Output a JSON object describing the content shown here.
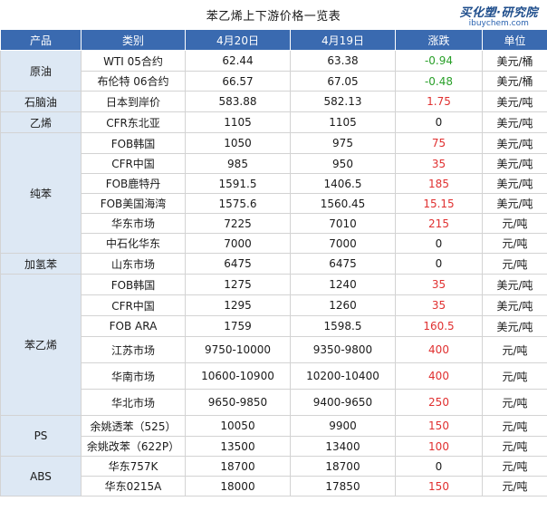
{
  "title": "苯乙烯上下游价格一览表",
  "logo": {
    "main": "买化塑·研究院",
    "sub": "ibuychem.com"
  },
  "headers": [
    "产品",
    "类别",
    "4月20日",
    "4月19日",
    "涨跌",
    "单位"
  ],
  "colors": {
    "header_bg": "#3a6ab0",
    "group_bg": "#dde8f4",
    "up": "#e03030",
    "down": "#2aa02a"
  },
  "groups": [
    {
      "product": "原油",
      "rows": [
        {
          "category": "WTI 05合约",
          "apr20": "62.44",
          "apr19": "63.38",
          "change": "-0.94",
          "dir": "neg",
          "unit": "美元/桶"
        },
        {
          "category": "布伦特 06合约",
          "apr20": "66.57",
          "apr19": "67.05",
          "change": "-0.48",
          "dir": "neg",
          "unit": "美元/桶"
        }
      ]
    },
    {
      "product": "石脑油",
      "rows": [
        {
          "category": "日本到岸价",
          "apr20": "583.88",
          "apr19": "582.13",
          "change": "1.75",
          "dir": "pos",
          "unit": "美元/吨"
        }
      ]
    },
    {
      "product": "乙烯",
      "rows": [
        {
          "category": "CFR东北亚",
          "apr20": "1105",
          "apr19": "1105",
          "change": "0",
          "dir": "zero",
          "unit": "美元/吨"
        }
      ]
    },
    {
      "product": "纯苯",
      "rows": [
        {
          "category": "FOB韩国",
          "apr20": "1050",
          "apr19": "975",
          "change": "75",
          "dir": "pos",
          "unit": "美元/吨"
        },
        {
          "category": "CFR中国",
          "apr20": "985",
          "apr19": "950",
          "change": "35",
          "dir": "pos",
          "unit": "美元/吨"
        },
        {
          "category": "FOB鹿特丹",
          "apr20": "1591.5",
          "apr19": "1406.5",
          "change": "185",
          "dir": "pos",
          "unit": "美元/吨"
        },
        {
          "category": "FOB美国海湾",
          "apr20": "1575.6",
          "apr19": "1560.45",
          "change": "15.15",
          "dir": "pos",
          "unit": "美元/吨"
        },
        {
          "category": "华东市场",
          "apr20": "7225",
          "apr19": "7010",
          "change": "215",
          "dir": "pos",
          "unit": "元/吨"
        },
        {
          "category": "中石化华东",
          "apr20": "7000",
          "apr19": "7000",
          "change": "0",
          "dir": "zero",
          "unit": "元/吨"
        }
      ]
    },
    {
      "product": "加氢苯",
      "rows": [
        {
          "category": "山东市场",
          "apr20": "6475",
          "apr19": "6475",
          "change": "0",
          "dir": "zero",
          "unit": "元/吨"
        }
      ]
    },
    {
      "product": "苯乙烯",
      "rows": [
        {
          "category": "FOB韩国",
          "apr20": "1275",
          "apr19": "1240",
          "change": "35",
          "dir": "pos",
          "unit": "美元/吨"
        },
        {
          "category": "CFR中国",
          "apr20": "1295",
          "apr19": "1260",
          "change": "35",
          "dir": "pos",
          "unit": "美元/吨"
        },
        {
          "category": "FOB ARA",
          "apr20": "1759",
          "apr19": "1598.5",
          "change": "160.5",
          "dir": "pos",
          "unit": "美元/吨"
        },
        {
          "category": "江苏市场",
          "apr20": "9750-10000",
          "apr19": "9350-9800",
          "change": "400",
          "dir": "pos",
          "unit": "元/吨"
        },
        {
          "category": "华南市场",
          "apr20": "10600-10900",
          "apr19": "10200-10400",
          "change": "400",
          "dir": "pos",
          "unit": "元/吨"
        },
        {
          "category": "华北市场",
          "apr20": "9650-9850",
          "apr19": "9400-9650",
          "change": "250",
          "dir": "pos",
          "unit": "元/吨"
        }
      ]
    },
    {
      "product": "PS",
      "rows": [
        {
          "category": "余姚透苯（525）",
          "apr20": "10050",
          "apr19": "9900",
          "change": "150",
          "dir": "pos",
          "unit": "元/吨"
        },
        {
          "category": "余姚改苯（622P）",
          "apr20": "13500",
          "apr19": "13400",
          "change": "100",
          "dir": "pos",
          "unit": "元/吨"
        }
      ]
    },
    {
      "product": "ABS",
      "rows": [
        {
          "category": "华东757K",
          "apr20": "18700",
          "apr19": "18700",
          "change": "0",
          "dir": "zero",
          "unit": "元/吨"
        },
        {
          "category": "华东0215A",
          "apr20": "18000",
          "apr19": "17850",
          "change": "150",
          "dir": "pos",
          "unit": "元/吨"
        }
      ]
    }
  ]
}
